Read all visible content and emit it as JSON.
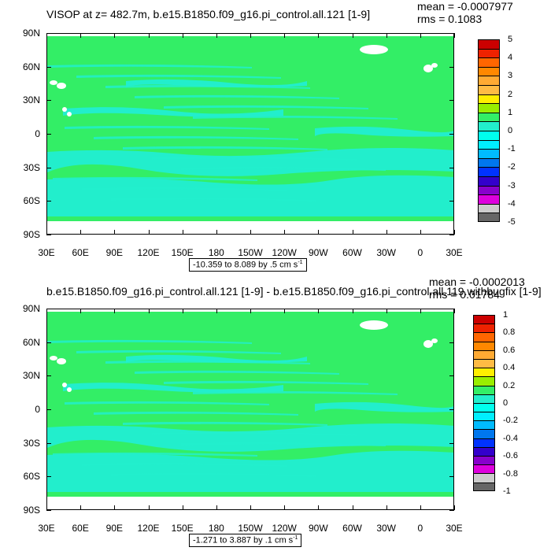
{
  "panels": [
    {
      "title": "VISOP at z= 482.7m, b.e15.B1850.f09_g16.pi_control.all.121 [1-9]",
      "mean": "mean = -0.0007977",
      "rms": "rms = 0.1083",
      "range_text": "-10.359 to 8.089 by .5 cm s",
      "range_unit_sup": "-1",
      "colorbar_labels": [
        "5",
        "4",
        "3",
        "2",
        "1",
        "0",
        "-1",
        "-2",
        "-3",
        "-4",
        "-5"
      ]
    },
    {
      "title": "b.e15.B1850.f09_g16.pi_control.all.121 [1-9] - b.e15.B1850.f09_g16.pi_control.all.119.withbugfix [1-9]",
      "mean": "mean = -0.0002013",
      "rms": "rms = 0.01784",
      "range_text": "-1.271 to 3.887 by .1 cm s",
      "range_unit_sup": "-1",
      "colorbar_labels": [
        "1",
        "0.8",
        "0.6",
        "0.4",
        "0.2",
        "0",
        "-0.2",
        "-0.4",
        "-0.6",
        "-0.8",
        "-1"
      ]
    }
  ],
  "lat_labels": [
    "90N",
    "60N",
    "30N",
    "0",
    "30S",
    "60S",
    "90S"
  ],
  "lon_labels": [
    "30E",
    "60E",
    "90E",
    "120E",
    "150E",
    "180",
    "150W",
    "120W",
    "90W",
    "60W",
    "30W",
    "0",
    "30E"
  ],
  "colors": {
    "land_green": "#33ee66",
    "ocean_cyan": "#22eecc",
    "missing_white": "#ffffff",
    "colorbar": [
      "#cc0000",
      "#ee2200",
      "#ff6600",
      "#ff8800",
      "#ffaa33",
      "#ffbb44",
      "#ffee00",
      "#99ee00",
      "#33ee66",
      "#22eecc",
      "#00ffee",
      "#00eeff",
      "#00bbff",
      "#0077ee",
      "#0033ff",
      "#3300cc",
      "#8800cc",
      "#dd00dd",
      "#cccccc",
      "#666666"
    ]
  }
}
